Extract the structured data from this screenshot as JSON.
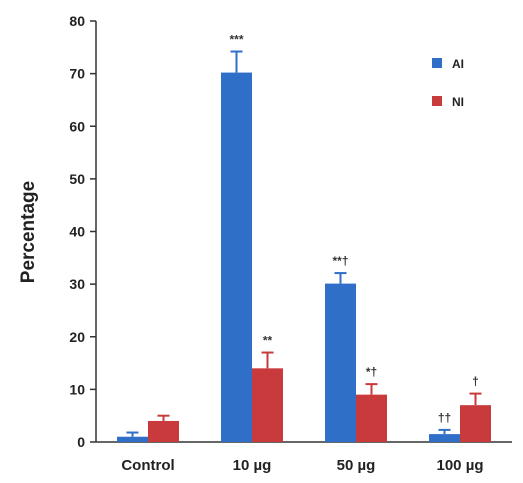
{
  "chart_data": {
    "type": "bar",
    "title": "",
    "xlabel": "",
    "ylabel": "Percentage",
    "ylim": [
      0,
      80
    ],
    "yticks": [
      0,
      10,
      20,
      30,
      40,
      50,
      60,
      70,
      80
    ],
    "categories": [
      "Control",
      "10 µg",
      "50 µg",
      "100 µg"
    ],
    "series": [
      {
        "name": "AI",
        "color": "#2f6fc7",
        "values": [
          1,
          70.2,
          30.1,
          1.5
        ],
        "errors": [
          0.8,
          4,
          2,
          0.8
        ],
        "annotations": [
          "",
          "***",
          "**†",
          "††"
        ]
      },
      {
        "name": "NI",
        "color": "#c83a3c",
        "values": [
          4,
          14,
          9,
          7
        ],
        "errors": [
          1,
          3,
          2,
          2.2
        ],
        "annotations": [
          "",
          "**",
          "*†",
          "†"
        ]
      }
    ],
    "grid": false,
    "legend_position": "top-right"
  }
}
